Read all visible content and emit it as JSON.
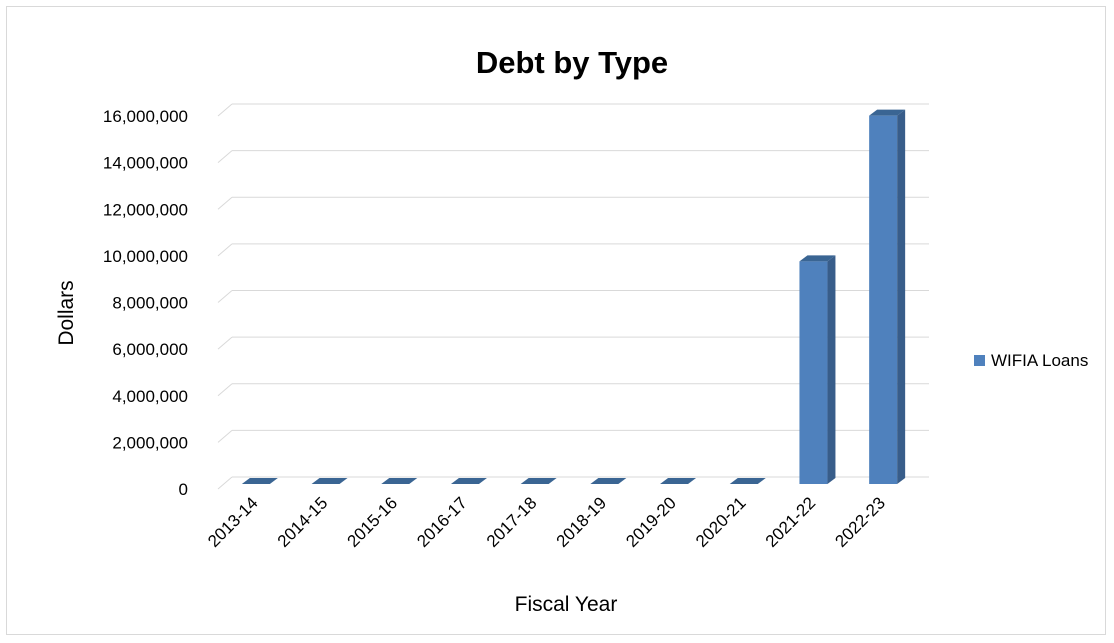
{
  "chart_data": {
    "type": "bar",
    "title": "Debt by Type",
    "xlabel": "Fiscal Year",
    "ylabel": "Dollars",
    "categories": [
      "2013-14",
      "2014-15",
      "2015-16",
      "2016-17",
      "2017-18",
      "2018-19",
      "2019-20",
      "2020-21",
      "2021-22",
      "2022-23"
    ],
    "series": [
      {
        "name": "WIFIA Loans",
        "values": [
          0,
          0,
          0,
          0,
          0,
          0,
          0,
          0,
          9550000,
          15800000
        ],
        "color": "#4f81bd"
      }
    ],
    "ylim": [
      0,
      16000000
    ],
    "yticks": [
      "0",
      "2,000,000",
      "4,000,000",
      "6,000,000",
      "8,000,000",
      "10,000,000",
      "12,000,000",
      "14,000,000",
      "16,000,000"
    ],
    "grid": true,
    "legend_position": "right",
    "style": "3d-column"
  }
}
